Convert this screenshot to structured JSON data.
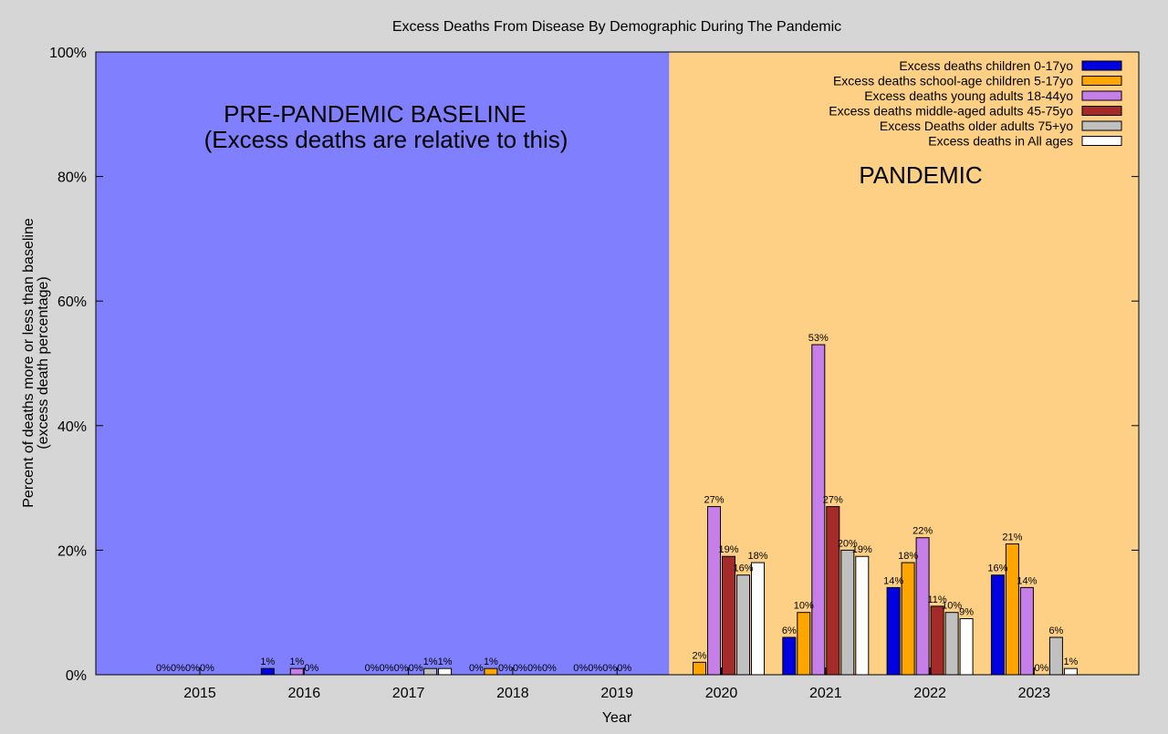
{
  "chart_data": {
    "type": "bar",
    "title": "Excess Deaths From Disease By Demographic During The Pandemic",
    "xlabel": "Year",
    "ylabel_line1": "Percent of deaths more or less than baseline",
    "ylabel_line2": "(excess death percentage)",
    "ylim": [
      0,
      100
    ],
    "yticks": [
      "0%",
      "20%",
      "40%",
      "60%",
      "80%",
      "100%"
    ],
    "ytick_values": [
      0,
      20,
      40,
      60,
      80,
      100
    ],
    "categories": [
      "2015",
      "2016",
      "2017",
      "2018",
      "2019",
      "2020",
      "2021",
      "2022",
      "2023"
    ],
    "legend_position": "top-right",
    "grid": false,
    "regions": [
      {
        "label_line1": "PRE-PANDEMIC BASELINE",
        "label_line2": "(Excess deaths are relative to this)",
        "color": "#8080ff",
        "from_category": "2015",
        "to_category": "2019"
      },
      {
        "label_line1": "PANDEMIC",
        "label_line2": "",
        "color": "#fdd085",
        "from_category": "2020",
        "to_category": "2023"
      }
    ],
    "series": [
      {
        "name": "Excess deaths children 0-17yo",
        "color": "#0000e0",
        "values": [
          0,
          1,
          0,
          0,
          0,
          0,
          6,
          14,
          16
        ],
        "labels": [
          "0%",
          "1%",
          "0%",
          "0%",
          "0%",
          "",
          "6%",
          "14%",
          "16%"
        ]
      },
      {
        "name": "Excess deaths school-age children 5-17yo",
        "color": "#ffa500",
        "values": [
          0,
          0,
          0,
          1,
          0,
          2,
          10,
          18,
          21
        ],
        "labels": [
          "0%",
          "",
          "0%",
          "1%",
          "0%",
          "2%",
          "10%",
          "18%",
          "21%"
        ]
      },
      {
        "name": "Excess deaths young adults 18-44yo",
        "color": "#c67ee8",
        "values": [
          0,
          1,
          0,
          0,
          0,
          27,
          53,
          22,
          14
        ],
        "labels": [
          "0%",
          "1%",
          "0%",
          "0%",
          "0%",
          "27%",
          "53%",
          "22%",
          "14%"
        ]
      },
      {
        "name": "Excess deaths middle-aged adults 45-75yo",
        "color": "#a52a2a",
        "values": [
          0,
          0,
          0,
          0,
          0,
          19,
          27,
          11,
          0
        ],
        "labels": [
          "0%",
          "0%",
          "0%",
          "0%",
          "0%",
          "19%",
          "27%",
          "11%",
          "0%"
        ]
      },
      {
        "name": "Excess Deaths older adults 75+yo",
        "color": "#c0c0c0",
        "values": [
          0,
          0,
          1,
          0,
          0,
          16,
          20,
          10,
          6
        ],
        "labels": [
          "",
          "",
          "1%",
          "0%",
          "",
          "16%",
          "20%",
          "10%",
          "6%"
        ]
      },
      {
        "name": "Excess deaths in All ages",
        "color": "#ffffff",
        "values": [
          0,
          0,
          1,
          0,
          0,
          18,
          19,
          9,
          1
        ],
        "labels": [
          "",
          "",
          "1%",
          "0%",
          "",
          "18%",
          "19%",
          "9%",
          "1%"
        ]
      }
    ]
  }
}
